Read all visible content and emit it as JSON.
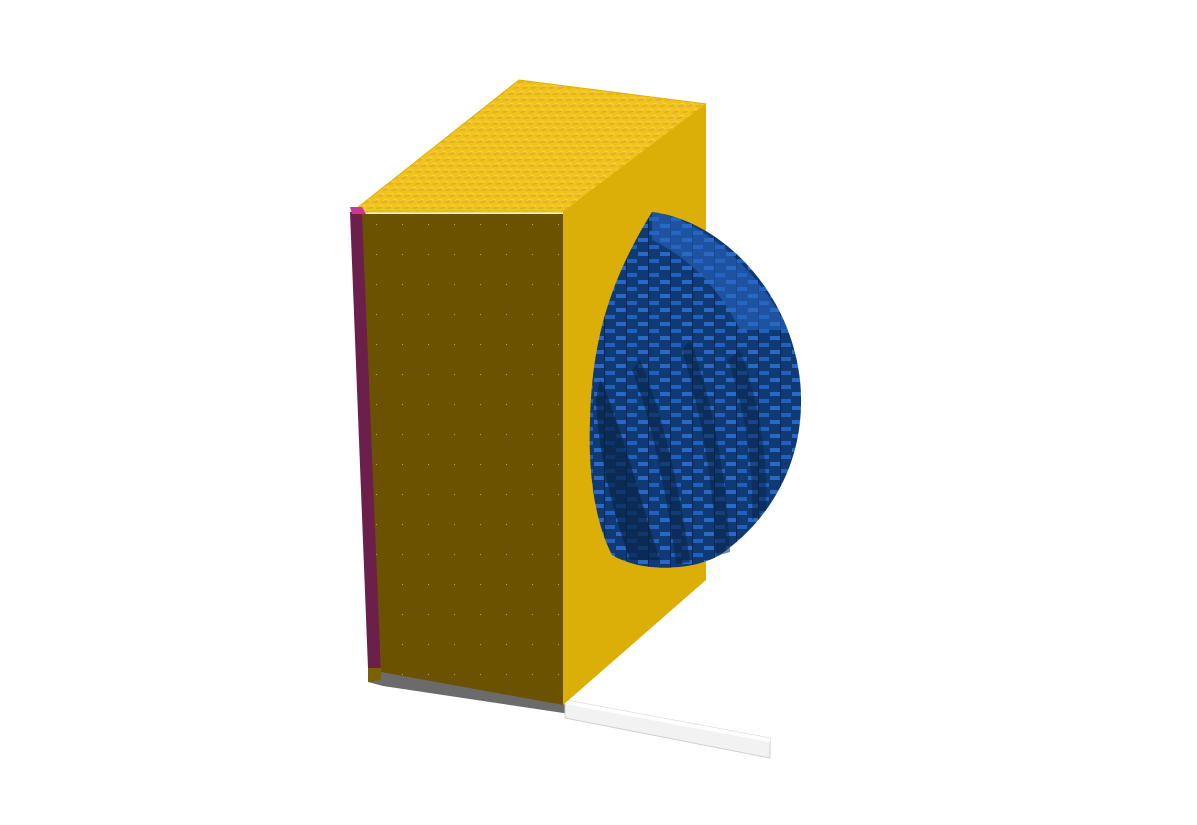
{
  "scene": {
    "background_color": "#ffffff",
    "colors": {
      "yellow_top": "#f2c31c",
      "yellow_front": "#6b5200",
      "yellow_side": "#dcae08",
      "magenta_front": "#6c1f4a",
      "magenta_top": "#c8388e",
      "blue_light": "#1f5cb8",
      "blue_dark": "#0b2e5a",
      "base_gray": "#6b6b6b",
      "base_white": "#f2f2f2",
      "base_yellow": "#7a6200"
    },
    "objects": [
      "yellow-brick-box",
      "magenta-side-panel",
      "blue-stepped-dome",
      "gray-base-plate",
      "white-base-plate"
    ]
  }
}
